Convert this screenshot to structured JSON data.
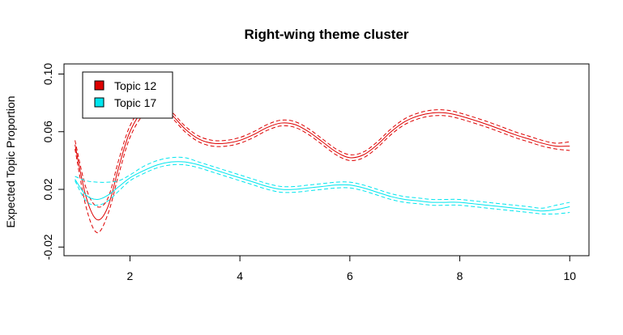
{
  "chart_data": {
    "type": "line",
    "title": "Right-wing theme cluster",
    "xlabel": "",
    "ylabel": "Expected Topic Proportion",
    "xlim": [
      0.8,
      10.35
    ],
    "ylim": [
      -0.026,
      0.107
    ],
    "xticks": [
      2,
      4,
      6,
      8,
      10
    ],
    "xtick_labels": [
      "2",
      "4",
      "6",
      "8",
      "10"
    ],
    "yticks": [
      -0.02,
      0.02,
      0.06,
      0.1
    ],
    "ytick_labels": [
      "-0.02",
      "0.02",
      "0.06",
      "0.10"
    ],
    "grid": false,
    "legend_position": "top-left",
    "series": [
      {
        "name": "Topic 12",
        "color": "#dd0000",
        "x": [
          1.0,
          1.2,
          1.4,
          1.6,
          1.8,
          2.0,
          2.25,
          2.5,
          2.75,
          3.0,
          3.25,
          3.5,
          3.75,
          4.0,
          4.25,
          4.5,
          4.75,
          5.0,
          5.25,
          5.5,
          5.75,
          6.0,
          6.25,
          6.5,
          6.75,
          7.0,
          7.25,
          7.5,
          7.75,
          8.0,
          8.5,
          9.0,
          9.25,
          9.5,
          9.75,
          10.0
        ],
        "y": [
          0.051,
          0.015,
          -0.001,
          0.008,
          0.036,
          0.06,
          0.075,
          0.078,
          0.072,
          0.062,
          0.055,
          0.052,
          0.052,
          0.054,
          0.058,
          0.063,
          0.066,
          0.065,
          0.06,
          0.053,
          0.046,
          0.042,
          0.044,
          0.051,
          0.06,
          0.067,
          0.071,
          0.073,
          0.073,
          0.071,
          0.065,
          0.058,
          0.055,
          0.052,
          0.05,
          0.05
        ],
        "lower": [
          0.048,
          0.008,
          -0.01,
          0.003,
          0.031,
          0.056,
          0.072,
          0.076,
          0.07,
          0.06,
          0.053,
          0.05,
          0.05,
          0.052,
          0.056,
          0.061,
          0.064,
          0.063,
          0.058,
          0.051,
          0.044,
          0.04,
          0.042,
          0.049,
          0.058,
          0.065,
          0.069,
          0.071,
          0.071,
          0.069,
          0.063,
          0.056,
          0.053,
          0.05,
          0.048,
          0.047
        ],
        "upper": [
          0.054,
          0.021,
          0.008,
          0.014,
          0.041,
          0.064,
          0.078,
          0.08,
          0.074,
          0.064,
          0.057,
          0.054,
          0.054,
          0.056,
          0.06,
          0.065,
          0.068,
          0.067,
          0.062,
          0.055,
          0.048,
          0.044,
          0.046,
          0.053,
          0.062,
          0.069,
          0.073,
          0.075,
          0.075,
          0.073,
          0.067,
          0.06,
          0.057,
          0.054,
          0.052,
          0.053
        ]
      },
      {
        "name": "Topic 17",
        "color": "#00e5ee",
        "x": [
          1.0,
          1.2,
          1.4,
          1.6,
          1.8,
          2.0,
          2.25,
          2.5,
          2.75,
          3.0,
          3.25,
          3.5,
          3.75,
          4.0,
          4.25,
          4.5,
          4.75,
          5.0,
          5.25,
          5.5,
          5.75,
          6.0,
          6.25,
          6.5,
          6.75,
          7.0,
          7.25,
          7.5,
          7.75,
          8.0,
          8.5,
          9.0,
          9.25,
          9.5,
          9.75,
          10.0
        ],
        "y": [
          0.027,
          0.016,
          0.013,
          0.016,
          0.022,
          0.028,
          0.033,
          0.037,
          0.039,
          0.039,
          0.037,
          0.034,
          0.031,
          0.028,
          0.025,
          0.022,
          0.02,
          0.02,
          0.021,
          0.022,
          0.023,
          0.023,
          0.021,
          0.018,
          0.015,
          0.013,
          0.012,
          0.011,
          0.011,
          0.011,
          0.009,
          0.007,
          0.006,
          0.005,
          0.006,
          0.008
        ],
        "lower": [
          0.026,
          0.012,
          0.009,
          0.012,
          0.019,
          0.026,
          0.031,
          0.035,
          0.037,
          0.037,
          0.035,
          0.032,
          0.029,
          0.026,
          0.023,
          0.02,
          0.018,
          0.018,
          0.019,
          0.02,
          0.021,
          0.021,
          0.019,
          0.016,
          0.013,
          0.011,
          0.01,
          0.009,
          0.009,
          0.009,
          0.007,
          0.005,
          0.004,
          0.003,
          0.003,
          0.004
        ],
        "upper": [
          0.029,
          0.026,
          0.025,
          0.025,
          0.026,
          0.03,
          0.036,
          0.04,
          0.042,
          0.042,
          0.039,
          0.036,
          0.033,
          0.03,
          0.027,
          0.024,
          0.022,
          0.022,
          0.023,
          0.024,
          0.025,
          0.025,
          0.023,
          0.02,
          0.017,
          0.015,
          0.014,
          0.013,
          0.013,
          0.013,
          0.011,
          0.009,
          0.008,
          0.007,
          0.009,
          0.011
        ]
      }
    ]
  }
}
